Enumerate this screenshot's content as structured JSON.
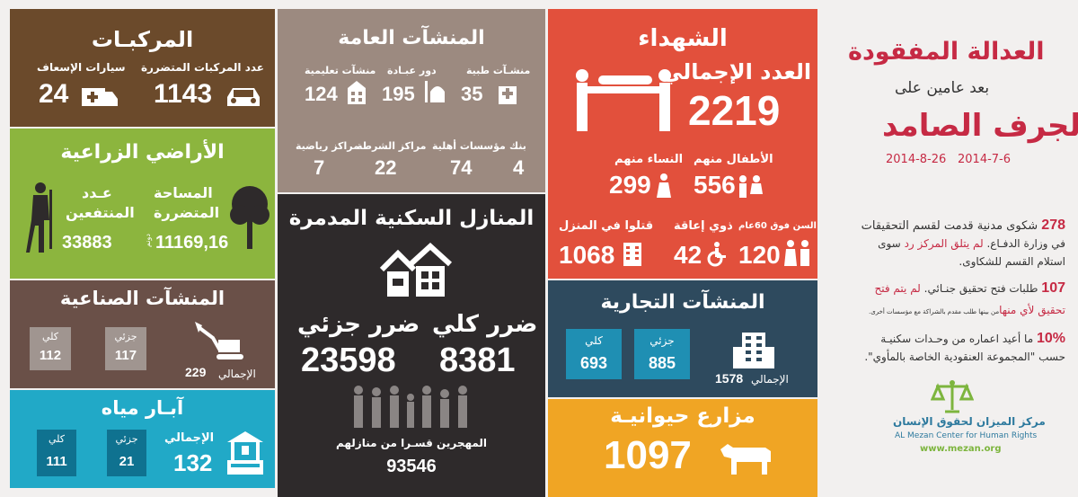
{
  "vehicles": {
    "title": "المركبـات",
    "damaged_label": "عدد المركبات المتضررة",
    "damaged_value": "1143",
    "ambulance_label": "سيارات الإسعاف",
    "ambulance_value": "24",
    "color": "#6b4a2b"
  },
  "public_facilities": {
    "title": "المنشآت العامة",
    "medical_label": "منشـآت طبية",
    "medical_value": "35",
    "worship_label": "دور عبـادة",
    "worship_value": "195",
    "education_label": "منشآت تعليمية",
    "education_value": "124",
    "bank_label": "بنك",
    "bank_value": "4",
    "ngo_label": "مؤسسات أهلية",
    "ngo_value": "74",
    "police_label": "مراكز الشرطة",
    "police_value": "22",
    "sports_label": "مراكز رياضية",
    "sports_value": "7",
    "color": "#9c8a80"
  },
  "martyrs": {
    "title": "الشهداء",
    "total_label": "العدد الإجمالي",
    "total_value": "2219",
    "children_label": "الأطفال منهم",
    "children_value": "556",
    "women_label": "النساء منهم",
    "women_value": "299",
    "elderly_label": "كبار السن فوق 60عام",
    "elderly_value": "120",
    "disabled_label": "ذوي إعاقة",
    "disabled_value": "42",
    "home_label": "قتلوا في المنزل",
    "home_value": "1068",
    "color": "#e2503c"
  },
  "header": {
    "title_line1": "العدالة المفقودة",
    "title_line2": "بعد عامين على",
    "title_line3": "الجرف الصامد",
    "date_start": "2014-7-6",
    "date_end": "2014-8-26"
  },
  "agriculture": {
    "title": "الأراضي الزراعية",
    "area_label_1": "المساحة",
    "area_label_2": "المتضررة",
    "area_value": "11169,16",
    "area_unit": "دونم",
    "farmers_label_1": "عـدد",
    "farmers_label_2": "المنتفعين",
    "farmers_value": "33883",
    "color": "#8cb53e"
  },
  "housing": {
    "title": "المنازل السكنية المدمرة",
    "total_label": "ضرر كلي",
    "total_value": "8381",
    "partial_label": "ضرر جزئي",
    "partial_value": "23598",
    "displaced_label": "المهجرين قسـرا من منازلهم",
    "displaced_value": "93546",
    "color": "#2e2a2b"
  },
  "industrial": {
    "title": "المنشآت الصناعية",
    "total_label": "كلي",
    "total_value": "112",
    "partial_label": "جزئي",
    "partial_value": "117",
    "sum_label": "الإجمالي",
    "sum_value": "229",
    "color": "#6a5048"
  },
  "commercial": {
    "title": "المنشآت التجارية",
    "total_label": "كلي",
    "total_value": "693",
    "partial_label": "جزئي",
    "partial_value": "885",
    "sum_label": "الإجمالي",
    "sum_value": "1578",
    "color": "#2e4a5e"
  },
  "wells": {
    "title": "آبـار مياه",
    "total_label": "كلي",
    "total_value": "111",
    "partial_label": "جزئي",
    "partial_value": "21",
    "sum_label": "الإجمالي",
    "sum_value": "132",
    "color": "#21a9c7"
  },
  "farms": {
    "title": "مزارع حيوانيـة",
    "value": "1097",
    "color": "#f0a524"
  },
  "complaints": {
    "item1_number": "278",
    "item1_text_a": "شكوى مدنية قدمت لقسم التحقيقات",
    "item1_text_b": "في وزارة الدفـاع.",
    "item1_text_highlight": "لم يتلق المركز رد",
    "item1_text_c": "سوى",
    "item1_text_d": "استلام القسم للشكاوى.",
    "item2_number": "107",
    "item2_text_a": "طلبات فتح تحقيق جنـائي.",
    "item2_text_highlight": "لم يتم فتح",
    "item2_text_b": "تحقيق لأي منها",
    "item2_text_small": "من بينها طلب مقدم بالشراكة مع مؤسسات أخرى.",
    "item3_number": "10%",
    "item3_text_a": "ما أعيد اعماره من وحـدات سكنيـة",
    "item3_text_b": "حسب \"المجموعة العنقودية الخاصة بالمأوي\"."
  },
  "logo": {
    "name_ar": "مركز الميزان لحقوق الإنسان",
    "name_en": "AL Mezan Center for Human Rights",
    "url": "www.mezan.org"
  }
}
